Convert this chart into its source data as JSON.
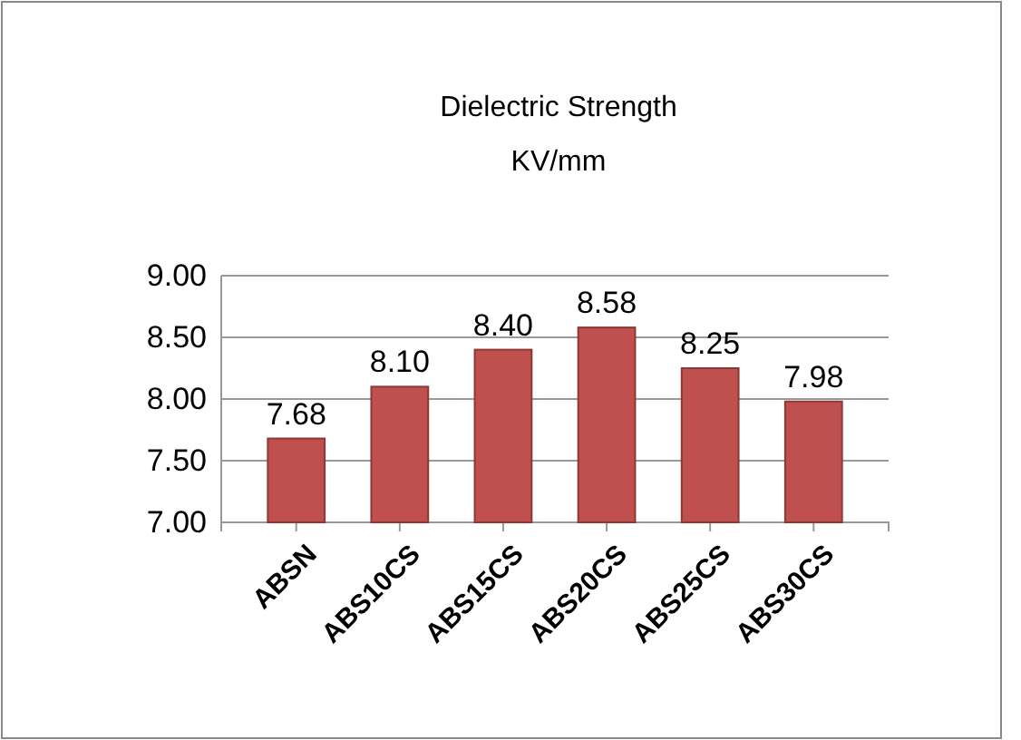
{
  "chart_data": {
    "type": "bar",
    "title": "Dielectric Strength",
    "subtitle": "KV/mm",
    "categories": [
      "ABSN",
      "ABS10CS",
      "ABS15CS",
      "ABS20CS",
      "ABS25CS",
      "ABS30CS"
    ],
    "values": [
      7.68,
      8.1,
      8.4,
      8.58,
      8.25,
      7.98
    ],
    "color": "#c0504d",
    "value_labels": [
      "7.68",
      "8.10",
      "8.40",
      "8.58",
      "8.25",
      "7.98"
    ],
    "ylim": [
      7,
      9
    ],
    "yticks": [
      {
        "value": 7,
        "label": "7.00"
      },
      {
        "value": 7.5,
        "label": "7.50"
      },
      {
        "value": 8,
        "label": "8.00"
      },
      {
        "value": 8.5,
        "label": "8.50"
      },
      {
        "value": 9,
        "label": "9.00"
      }
    ],
    "grid": "y"
  }
}
